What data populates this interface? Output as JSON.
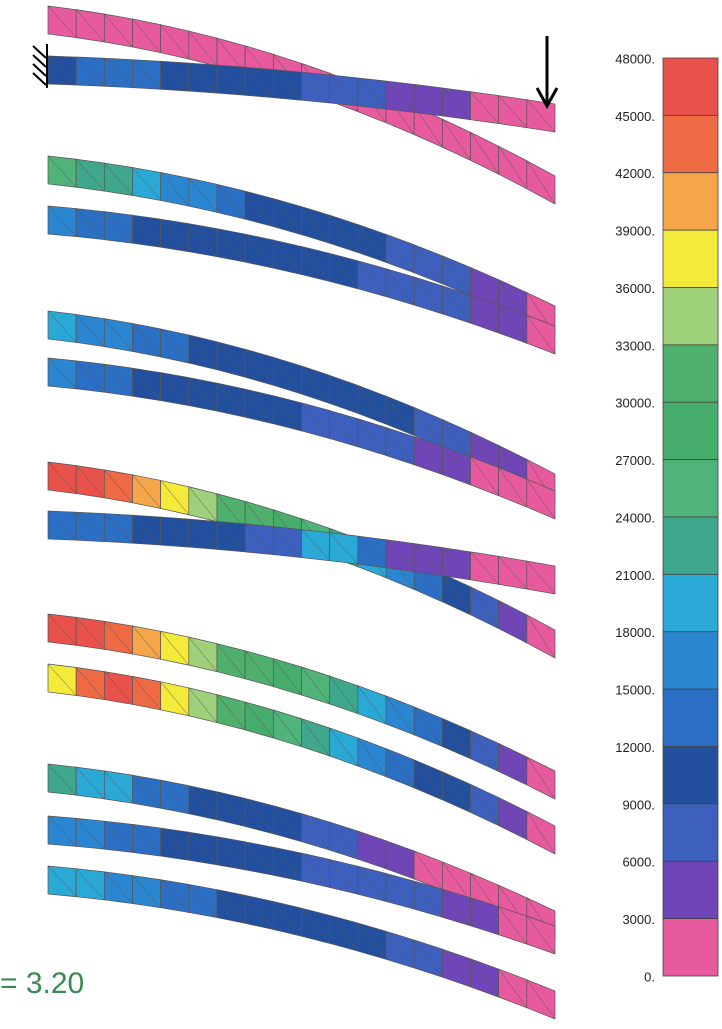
{
  "colorbar": {
    "labels": [
      "48000.",
      "45000.",
      "42000.",
      "39000.",
      "36000.",
      "33000.",
      "30000.",
      "27000.",
      "24000.",
      "21000.",
      "18000.",
      "15000.",
      "12000.",
      "9000.",
      "6000.",
      "3000.",
      "0."
    ],
    "colors": [
      "#e8524a",
      "#ee6a45",
      "#f6a64a",
      "#f4ea3a",
      "#9fd07a",
      "#4fb06e",
      "#47ad6c",
      "#50b37a",
      "#3fa88c",
      "#2aa9d6",
      "#2b86d2",
      "#2a6fc4",
      "#23509e",
      "#3d5fbe",
      "#6f45b8",
      "#e85a9e"
    ]
  },
  "annotation": "= 3.20"
}
